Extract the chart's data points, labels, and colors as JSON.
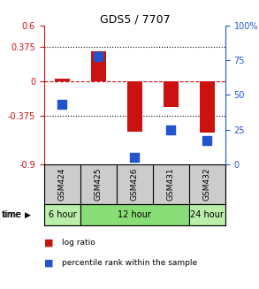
{
  "title": "GDS5 / 7707",
  "samples": [
    "GSM424",
    "GSM425",
    "GSM426",
    "GSM431",
    "GSM432"
  ],
  "log_ratio": [
    0.03,
    0.33,
    -0.55,
    -0.28,
    -0.56
  ],
  "percentile_rank": [
    43,
    78,
    5,
    25,
    17
  ],
  "ylim_left": [
    -0.9,
    0.6
  ],
  "ylim_right": [
    0,
    100
  ],
  "yticks_left": [
    -0.9,
    -0.375,
    0,
    0.375,
    0.6
  ],
  "yticks_right": [
    0,
    25,
    50,
    75,
    100
  ],
  "ytick_labels_left": [
    "-0.9",
    "-0.375",
    "0",
    "0.375",
    "0.6"
  ],
  "ytick_labels_right": [
    "0",
    "25",
    "50",
    "75",
    "100%"
  ],
  "hlines_dotted": [
    0.375,
    -0.375
  ],
  "hline_dashed": 0,
  "bar_color": "#cc1111",
  "dot_color": "#2255cc",
  "time_groups": [
    {
      "label": "6 hour",
      "samples": [
        "GSM424"
      ],
      "color": "#bbeeaa"
    },
    {
      "label": "12 hour",
      "samples": [
        "GSM425",
        "GSM426",
        "GSM431"
      ],
      "color": "#88dd77"
    },
    {
      "label": "24 hour",
      "samples": [
        "GSM432"
      ],
      "color": "#bbeeaa"
    }
  ],
  "legend_items": [
    {
      "label": "log ratio",
      "color": "#cc1111"
    },
    {
      "label": "percentile rank within the sample",
      "color": "#2255cc"
    }
  ],
  "sample_bg_color": "#cccccc",
  "bar_width": 0.4,
  "dot_size": 45,
  "left_axis_color": "#cc1111",
  "right_axis_color": "#2255cc"
}
